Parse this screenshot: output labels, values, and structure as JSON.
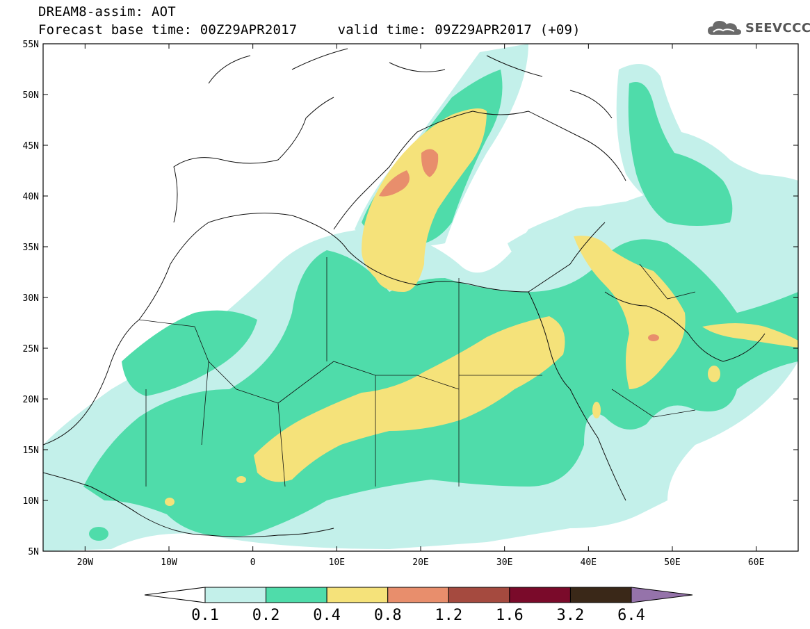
{
  "header": {
    "model_line": "DREAM8-assim: AOT",
    "forecast_line": "Forecast base time: 00Z29APR2017     valid time: 09Z29APR2017 (+09)"
  },
  "logo": {
    "text": "SEEVCCC",
    "icon": "cloud-icon"
  },
  "map": {
    "lon_range": [
      -25,
      65
    ],
    "lat_range": [
      5,
      55
    ],
    "lat_labels": [
      "55N",
      "50N",
      "45N",
      "40N",
      "35N",
      "30N",
      "25N",
      "20N",
      "15N",
      "10N",
      "5N"
    ],
    "lat_values": [
      55,
      50,
      45,
      40,
      35,
      30,
      25,
      20,
      15,
      10,
      5
    ],
    "lon_labels": [
      "20W",
      "10W",
      "0",
      "10E",
      "20E",
      "30E",
      "40E",
      "50E",
      "60E"
    ],
    "lon_values": [
      -20,
      -10,
      0,
      10,
      20,
      30,
      40,
      50,
      60
    ]
  },
  "colorbar": {
    "levels": [
      "0.1",
      "0.2",
      "0.4",
      "0.8",
      "1.2",
      "1.6",
      "3.2",
      "6.4"
    ],
    "colors": [
      "#c3f0ea",
      "#4fdcaa",
      "#f5e27a",
      "#e88e6c",
      "#a54a3f",
      "#7a0a2a",
      "#3a2818",
      "#9573aa"
    ],
    "under_color": "#ffffff"
  }
}
